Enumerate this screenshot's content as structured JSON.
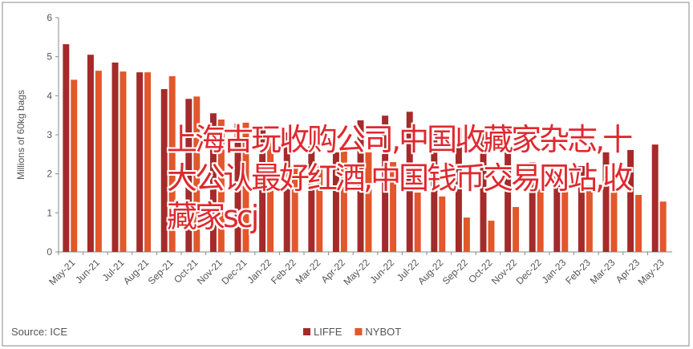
{
  "chart_data": {
    "type": "bar",
    "y_axis_label": "Millions of 60kg bags",
    "source": "Source: ICE",
    "categories": [
      "May-21",
      "Jun-21",
      "Jul-21",
      "Aug-21",
      "Sep-21",
      "Oct-21",
      "Nov-21",
      "Dec-21",
      "Jan-22",
      "Feb-22",
      "Mar-22",
      "Apr-22",
      "May-22",
      "Jun-22",
      "Jul-22",
      "Aug-22",
      "Sep-22",
      "Oct-22",
      "Nov-22",
      "Dec-22",
      "Jan-23",
      "Feb-23",
      "Mar-23",
      "Apr-23",
      "May-23"
    ],
    "series": [
      {
        "name": "LIFFE",
        "color": "#a52a2a",
        "values": [
          5.32,
          5.05,
          4.85,
          4.6,
          4.17,
          3.92,
          3.55,
          3.29,
          3.16,
          3.06,
          3.24,
          2.55,
          3.37,
          3.49,
          3.59,
          3.2,
          3.18,
          3.02,
          2.55,
          2.3,
          2.0,
          2.2,
          2.55,
          2.61,
          2.75
        ]
      },
      {
        "name": "NYBOT",
        "color": "#e2572b",
        "values": [
          4.41,
          4.64,
          4.62,
          4.6,
          4.5,
          3.98,
          3.39,
          3.31,
          2.9,
          2.2,
          2.2,
          2.6,
          2.55,
          2.3,
          1.52,
          1.42,
          0.88,
          0.8,
          1.15,
          1.6,
          1.6,
          1.7,
          1.58,
          1.46,
          1.29
        ]
      }
    ],
    "ylim": [
      0,
      6
    ],
    "yticks": [
      0,
      1,
      2,
      3,
      4,
      5,
      6
    ]
  },
  "overlay": {
    "text": "上海古玩收购公司,中国收藏家杂志,十大公认最好红酒,中国钱币交易网站,收藏家scj"
  }
}
